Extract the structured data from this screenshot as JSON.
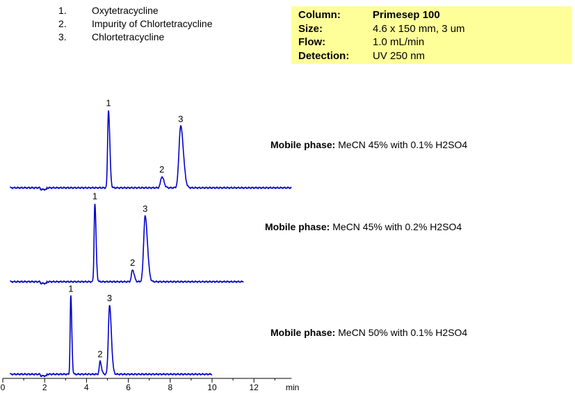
{
  "legend": [
    {
      "num": "1.",
      "name": "Oxytetracycline"
    },
    {
      "num": "2.",
      "name": "Impurity of Chlortetracycline"
    },
    {
      "num": "3.",
      "name": "Chlortetracycline"
    }
  ],
  "conditions": [
    {
      "key": "Column:",
      "value": "Primesep  100",
      "bold": true
    },
    {
      "key": "Size:",
      "value": "4.6 x 150 mm, 3 um",
      "bold": false
    },
    {
      "key": "Flow:",
      "value": "1.0 mL/min",
      "bold": false
    },
    {
      "key": "Detection:",
      "value": "UV 250 nm",
      "bold": false
    }
  ],
  "colors": {
    "trace": "#0000cc",
    "info_box": "#ffff99",
    "axis": "#000000"
  },
  "chart_data": {
    "type": "line",
    "x_axis": {
      "label": "min",
      "ticks": [
        0,
        2,
        4,
        6,
        8,
        10,
        12
      ],
      "range": [
        0,
        13.8
      ]
    },
    "series": [
      {
        "mobile_phase_label": "Mobile phase:",
        "mobile_phase_value": "MeCN 45% with 0.1% H2SO4",
        "x_end": 13.8,
        "peaks": [
          {
            "label": "1",
            "rt": 5.05,
            "height": 0.97,
            "width": 0.04
          },
          {
            "label": "2",
            "rt": 7.6,
            "height": 0.14,
            "width": 0.06
          },
          {
            "label": "3",
            "rt": 8.5,
            "height": 0.77,
            "width": 0.08
          }
        ]
      },
      {
        "mobile_phase_label": "Mobile phase:",
        "mobile_phase_value": "MeCN 45% with 0.2% H2SO4",
        "x_end": 11.5,
        "peaks": [
          {
            "label": "1",
            "rt": 4.4,
            "height": 0.98,
            "width": 0.035
          },
          {
            "label": "2",
            "rt": 6.2,
            "height": 0.15,
            "width": 0.05
          },
          {
            "label": "3",
            "rt": 6.8,
            "height": 0.82,
            "width": 0.07
          }
        ]
      },
      {
        "mobile_phase_label": "Mobile phase:",
        "mobile_phase_value": "MeCN 50% with 0.1% H2SO4",
        "x_end": 10.0,
        "peaks": [
          {
            "label": "1",
            "rt": 3.25,
            "height": 0.98,
            "width": 0.03
          },
          {
            "label": "2",
            "rt": 4.65,
            "height": 0.16,
            "width": 0.04
          },
          {
            "label": "3",
            "rt": 5.1,
            "height": 0.86,
            "width": 0.055
          }
        ]
      }
    ]
  }
}
